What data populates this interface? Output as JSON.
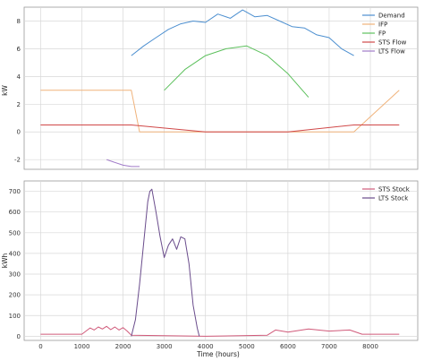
{
  "chart_data": [
    {
      "type": "line",
      "xlabel": "",
      "ylabel": "kW",
      "xlim": [
        -400,
        9150
      ],
      "ylim": [
        -2.7,
        9.0
      ],
      "xticks": [
        0,
        1000,
        2000,
        3000,
        4000,
        5000,
        6000,
        7000,
        8000
      ],
      "yticks": [
        -2,
        0,
        2,
        4,
        6,
        8
      ],
      "grid": true,
      "legend_position": "top-right",
      "series": [
        {
          "name": "Demand",
          "color": "#4c8fd0",
          "x": [
            2200,
            2500,
            2800,
            3100,
            3400,
            3700,
            4000,
            4300,
            4600,
            4900,
            5200,
            5500,
            5800,
            6100,
            6400,
            6700,
            7000,
            7300,
            7600
          ],
          "y": [
            5.5,
            6.2,
            6.8,
            7.4,
            7.8,
            8.0,
            7.9,
            8.5,
            8.2,
            8.8,
            8.3,
            8.4,
            8.0,
            7.6,
            7.5,
            7.0,
            6.8,
            6.0,
            5.5
          ]
        },
        {
          "name": "IFP",
          "color": "#f0b27a",
          "x": [
            0,
            2200,
            2400,
            7600,
            8700
          ],
          "y": [
            3.0,
            3.0,
            0.0,
            0.0,
            3.0
          ]
        },
        {
          "name": "FP",
          "color": "#5cc05c",
          "x": [
            3000,
            3500,
            4000,
            4500,
            5000,
            5500,
            6000,
            6500
          ],
          "y": [
            3.0,
            4.5,
            5.5,
            6.0,
            6.2,
            5.5,
            4.2,
            2.5
          ]
        },
        {
          "name": "STS Flow",
          "color": "#d04848",
          "x": [
            0,
            2200,
            4000,
            6000,
            7600,
            8700
          ],
          "y": [
            0.5,
            0.5,
            0.0,
            0.0,
            0.5,
            0.5
          ]
        },
        {
          "name": "LTS Flow",
          "color": "#a07ac8",
          "x": [
            1600,
            2000,
            2200,
            2400
          ],
          "y": [
            -2.0,
            -2.4,
            -2.5,
            -2.5
          ]
        }
      ]
    },
    {
      "type": "line",
      "xlabel": "Time (hours)",
      "ylabel": "kWh",
      "xlim": [
        -400,
        9150
      ],
      "ylim": [
        -20,
        750
      ],
      "xticks": [
        0,
        1000,
        2000,
        3000,
        4000,
        5000,
        6000,
        7000,
        8000
      ],
      "yticks": [
        0,
        100,
        200,
        300,
        400,
        500,
        600,
        700
      ],
      "grid": true,
      "legend_position": "top-right",
      "series": [
        {
          "name": "STS Stock",
          "color": "#d05a7a",
          "x": [
            0,
            1000,
            1200,
            1300,
            1400,
            1500,
            1600,
            1700,
            1800,
            1900,
            2000,
            2100,
            2200,
            4000,
            5500,
            5700,
            6000,
            6500,
            7000,
            7500,
            7800,
            8700
          ],
          "y": [
            10,
            10,
            40,
            30,
            45,
            35,
            48,
            32,
            45,
            30,
            42,
            25,
            5,
            0,
            5,
            30,
            20,
            35,
            25,
            30,
            10,
            10
          ]
        },
        {
          "name": "LTS Stock",
          "color": "#6a4c8c",
          "x": [
            2200,
            2300,
            2400,
            2500,
            2600,
            2650,
            2700,
            2800,
            2900,
            3000,
            3100,
            3200,
            3300,
            3400,
            3500,
            3600,
            3700,
            3800,
            3850
          ],
          "y": [
            0,
            80,
            250,
            450,
            650,
            700,
            710,
            600,
            480,
            380,
            440,
            470,
            420,
            480,
            470,
            350,
            150,
            40,
            0
          ]
        }
      ]
    }
  ]
}
